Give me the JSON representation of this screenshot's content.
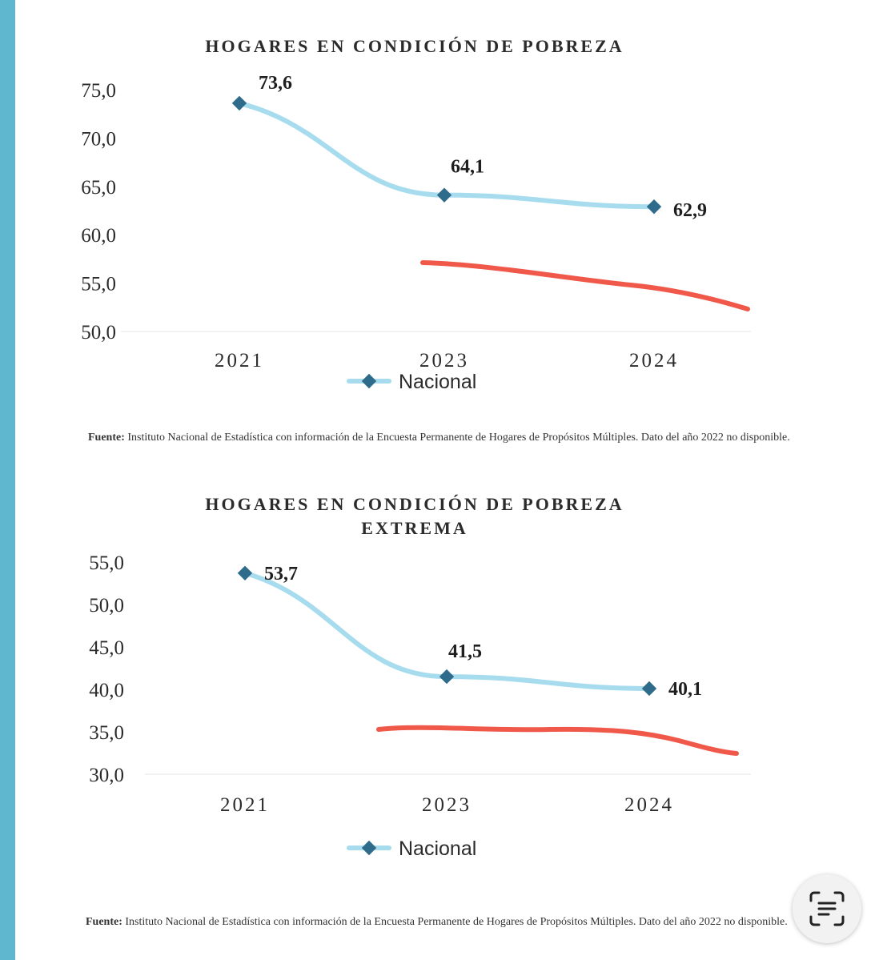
{
  "charts": [
    {
      "title": "HOGARES EN CONDICIÓN DE POBREZA",
      "subtitle": "",
      "source_label": "Fuente:",
      "source_text": "Instituto Nacional de Estadística con información de la Encuesta Permanente de Hogares de Propósitos Múltiples. Dato del año 2022 no disponible."
    },
    {
      "title": "HOGARES EN CONDICIÓN DE POBREZA",
      "subtitle": "EXTREMA",
      "source_label": "Fuente:",
      "source_text": "Instituto Nacional de Estadística con información de la Encuesta Permanente de Hogares de Propósitos Múltiples. Dato del año 2022 no disponible."
    }
  ],
  "chart_data": [
    {
      "type": "line",
      "title": "HOGARES EN CONDICIÓN DE POBREZA",
      "categories": [
        "2021",
        "2023",
        "2024"
      ],
      "series": [
        {
          "name": "Nacional",
          "values": [
            73.6,
            64.1,
            62.9
          ],
          "labels": [
            "73,6",
            "64,1",
            "62,9"
          ],
          "color": "#a6dcee",
          "marker_color": "#2f6b8a"
        }
      ],
      "ylim": [
        50,
        75
      ],
      "yticks": [
        "50,0",
        "55,0",
        "60,0",
        "65,0",
        "70,0",
        "75,0"
      ],
      "ytick_values": [
        50,
        55,
        60,
        65,
        70,
        75
      ],
      "grid": false,
      "legend": "bottom-center"
    },
    {
      "type": "line",
      "title": "HOGARES EN CONDICIÓN DE POBREZA EXTREMA",
      "categories": [
        "2021",
        "2023",
        "2024"
      ],
      "series": [
        {
          "name": "Nacional",
          "values": [
            53.7,
            41.5,
            40.1
          ],
          "labels": [
            "53,7",
            "41,5",
            "40,1"
          ],
          "color": "#a6dcee",
          "marker_color": "#2f6b8a"
        }
      ],
      "ylim": [
        30,
        55
      ],
      "yticks": [
        "30,0",
        "35,0",
        "40,0",
        "45,0",
        "50,0",
        "55,0"
      ],
      "ytick_values": [
        30,
        35,
        40,
        45,
        50,
        55
      ],
      "grid": false,
      "legend": "bottom-center"
    }
  ],
  "annotations": {
    "red_marker_color": "#f0584a"
  },
  "ui": {
    "scan_icon": "text-scan-icon"
  }
}
